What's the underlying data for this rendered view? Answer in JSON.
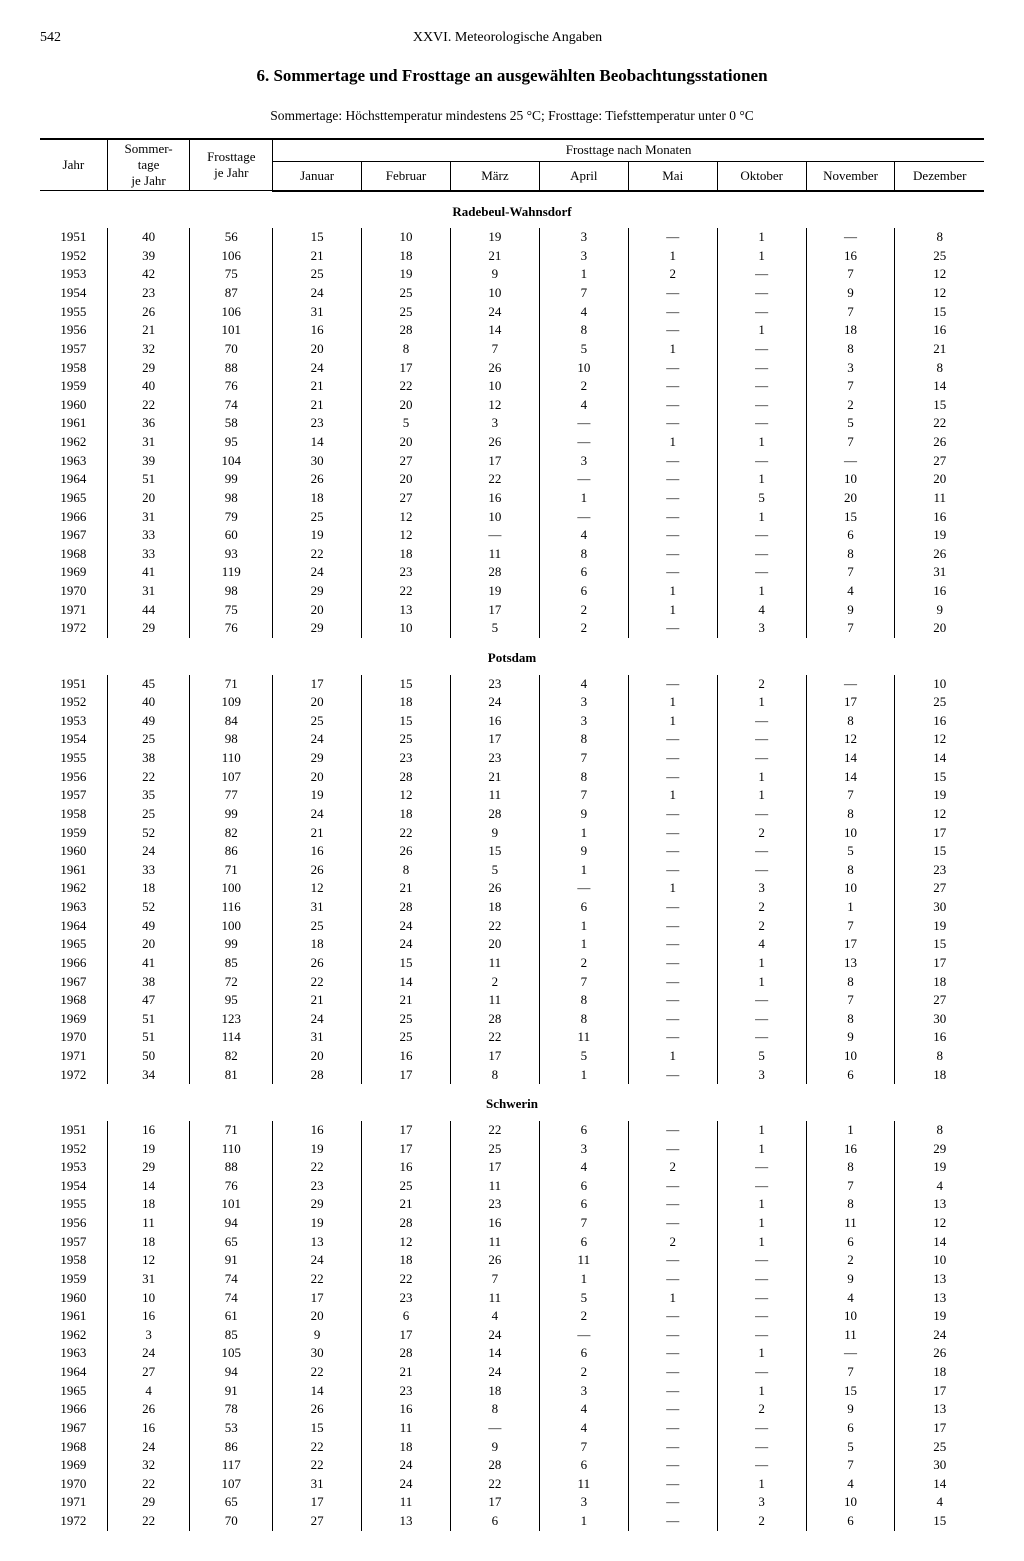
{
  "page_number": "542",
  "chapter": "XXVI. Meteorologische Angaben",
  "title": "6. Sommertage und Frosttage an ausgewählten Beobachtungsstationen",
  "subtitle": "Sommertage: Höchsttemperatur mindestens 25 °C;  Frosttage: Tiefsttemperatur unter 0 °C",
  "head": {
    "jahr": "Jahr",
    "sommer": "Sommer-\ntage\nje Jahr",
    "frost": "Frosttage\nje Jahr",
    "group": "Frosttage nach Monaten",
    "months": [
      "Januar",
      "Februar",
      "März",
      "April",
      "Mai",
      "Oktober",
      "November",
      "Dezember"
    ]
  },
  "stations": [
    {
      "name": "Radebeul-Wahnsdorf",
      "rows": [
        [
          "1951",
          "40",
          "56",
          "15",
          "10",
          "19",
          "3",
          "—",
          "1",
          "—",
          "8"
        ],
        [
          "1952",
          "39",
          "106",
          "21",
          "18",
          "21",
          "3",
          "1",
          "1",
          "16",
          "25"
        ],
        [
          "1953",
          "42",
          "75",
          "25",
          "19",
          "9",
          "1",
          "2",
          "—",
          "7",
          "12"
        ],
        [
          "1954",
          "23",
          "87",
          "24",
          "25",
          "10",
          "7",
          "—",
          "—",
          "9",
          "12"
        ],
        [
          "1955",
          "26",
          "106",
          "31",
          "25",
          "24",
          "4",
          "—",
          "—",
          "7",
          "15"
        ],
        [
          "1956",
          "21",
          "101",
          "16",
          "28",
          "14",
          "8",
          "—",
          "1",
          "18",
          "16"
        ],
        [
          "1957",
          "32",
          "70",
          "20",
          "8",
          "7",
          "5",
          "1",
          "—",
          "8",
          "21"
        ],
        [
          "1958",
          "29",
          "88",
          "24",
          "17",
          "26",
          "10",
          "—",
          "—",
          "3",
          "8"
        ],
        [
          "1959",
          "40",
          "76",
          "21",
          "22",
          "10",
          "2",
          "—",
          "—",
          "7",
          "14"
        ],
        [
          "1960",
          "22",
          "74",
          "21",
          "20",
          "12",
          "4",
          "—",
          "—",
          "2",
          "15"
        ],
        [
          "1961",
          "36",
          "58",
          "23",
          "5",
          "3",
          "—",
          "—",
          "—",
          "5",
          "22"
        ],
        [
          "1962",
          "31",
          "95",
          "14",
          "20",
          "26",
          "—",
          "1",
          "1",
          "7",
          "26"
        ],
        [
          "1963",
          "39",
          "104",
          "30",
          "27",
          "17",
          "3",
          "—",
          "—",
          "—",
          "27"
        ],
        [
          "1964",
          "51",
          "99",
          "26",
          "20",
          "22",
          "—",
          "—",
          "1",
          "10",
          "20"
        ],
        [
          "1965",
          "20",
          "98",
          "18",
          "27",
          "16",
          "1",
          "—",
          "5",
          "20",
          "11"
        ],
        [
          "1966",
          "31",
          "79",
          "25",
          "12",
          "10",
          "—",
          "—",
          "1",
          "15",
          "16"
        ],
        [
          "1967",
          "33",
          "60",
          "19",
          "12",
          "—",
          "4",
          "—",
          "—",
          "6",
          "19"
        ],
        [
          "1968",
          "33",
          "93",
          "22",
          "18",
          "11",
          "8",
          "—",
          "—",
          "8",
          "26"
        ],
        [
          "1969",
          "41",
          "119",
          "24",
          "23",
          "28",
          "6",
          "—",
          "—",
          "7",
          "31"
        ],
        [
          "1970",
          "31",
          "98",
          "29",
          "22",
          "19",
          "6",
          "1",
          "1",
          "4",
          "16"
        ],
        [
          "1971",
          "44",
          "75",
          "20",
          "13",
          "17",
          "2",
          "1",
          "4",
          "9",
          "9"
        ],
        [
          "1972",
          "29",
          "76",
          "29",
          "10",
          "5",
          "2",
          "—",
          "3",
          "7",
          "20"
        ]
      ]
    },
    {
      "name": "Potsdam",
      "rows": [
        [
          "1951",
          "45",
          "71",
          "17",
          "15",
          "23",
          "4",
          "—",
          "2",
          "—",
          "10"
        ],
        [
          "1952",
          "40",
          "109",
          "20",
          "18",
          "24",
          "3",
          "1",
          "1",
          "17",
          "25"
        ],
        [
          "1953",
          "49",
          "84",
          "25",
          "15",
          "16",
          "3",
          "1",
          "—",
          "8",
          "16"
        ],
        [
          "1954",
          "25",
          "98",
          "24",
          "25",
          "17",
          "8",
          "—",
          "—",
          "12",
          "12"
        ],
        [
          "1955",
          "38",
          "110",
          "29",
          "23",
          "23",
          "7",
          "—",
          "—",
          "14",
          "14"
        ],
        [
          "1956",
          "22",
          "107",
          "20",
          "28",
          "21",
          "8",
          "—",
          "1",
          "14",
          "15"
        ],
        [
          "1957",
          "35",
          "77",
          "19",
          "12",
          "11",
          "7",
          "1",
          "1",
          "7",
          "19"
        ],
        [
          "1958",
          "25",
          "99",
          "24",
          "18",
          "28",
          "9",
          "—",
          "—",
          "8",
          "12"
        ],
        [
          "1959",
          "52",
          "82",
          "21",
          "22",
          "9",
          "1",
          "—",
          "2",
          "10",
          "17"
        ],
        [
          "1960",
          "24",
          "86",
          "16",
          "26",
          "15",
          "9",
          "—",
          "—",
          "5",
          "15"
        ],
        [
          "1961",
          "33",
          "71",
          "26",
          "8",
          "5",
          "1",
          "—",
          "—",
          "8",
          "23"
        ],
        [
          "1962",
          "18",
          "100",
          "12",
          "21",
          "26",
          "—",
          "1",
          "3",
          "10",
          "27"
        ],
        [
          "1963",
          "52",
          "116",
          "31",
          "28",
          "18",
          "6",
          "—",
          "2",
          "1",
          "30"
        ],
        [
          "1964",
          "49",
          "100",
          "25",
          "24",
          "22",
          "1",
          "—",
          "2",
          "7",
          "19"
        ],
        [
          "1965",
          "20",
          "99",
          "18",
          "24",
          "20",
          "1",
          "—",
          "4",
          "17",
          "15"
        ],
        [
          "1966",
          "41",
          "85",
          "26",
          "15",
          "11",
          "2",
          "—",
          "1",
          "13",
          "17"
        ],
        [
          "1967",
          "38",
          "72",
          "22",
          "14",
          "2",
          "7",
          "—",
          "1",
          "8",
          "18"
        ],
        [
          "1968",
          "47",
          "95",
          "21",
          "21",
          "11",
          "8",
          "—",
          "—",
          "7",
          "27"
        ],
        [
          "1969",
          "51",
          "123",
          "24",
          "25",
          "28",
          "8",
          "—",
          "—",
          "8",
          "30"
        ],
        [
          "1970",
          "51",
          "114",
          "31",
          "25",
          "22",
          "11",
          "—",
          "—",
          "9",
          "16"
        ],
        [
          "1971",
          "50",
          "82",
          "20",
          "16",
          "17",
          "5",
          "1",
          "5",
          "10",
          "8"
        ],
        [
          "1972",
          "34",
          "81",
          "28",
          "17",
          "8",
          "1",
          "—",
          "3",
          "6",
          "18"
        ]
      ]
    },
    {
      "name": "Schwerin",
      "rows": [
        [
          "1951",
          "16",
          "71",
          "16",
          "17",
          "22",
          "6",
          "—",
          "1",
          "1",
          "8"
        ],
        [
          "1952",
          "19",
          "110",
          "19",
          "17",
          "25",
          "3",
          "—",
          "1",
          "16",
          "29"
        ],
        [
          "1953",
          "29",
          "88",
          "22",
          "16",
          "17",
          "4",
          "2",
          "—",
          "8",
          "19"
        ],
        [
          "1954",
          "14",
          "76",
          "23",
          "25",
          "11",
          "6",
          "—",
          "—",
          "7",
          "4"
        ],
        [
          "1955",
          "18",
          "101",
          "29",
          "21",
          "23",
          "6",
          "—",
          "1",
          "8",
          "13"
        ],
        [
          "1956",
          "11",
          "94",
          "19",
          "28",
          "16",
          "7",
          "—",
          "1",
          "11",
          "12"
        ],
        [
          "1957",
          "18",
          "65",
          "13",
          "12",
          "11",
          "6",
          "2",
          "1",
          "6",
          "14"
        ],
        [
          "1958",
          "12",
          "91",
          "24",
          "18",
          "26",
          "11",
          "—",
          "—",
          "2",
          "10"
        ],
        [
          "1959",
          "31",
          "74",
          "22",
          "22",
          "7",
          "1",
          "—",
          "—",
          "9",
          "13"
        ],
        [
          "1960",
          "10",
          "74",
          "17",
          "23",
          "11",
          "5",
          "1",
          "—",
          "4",
          "13"
        ],
        [
          "1961",
          "16",
          "61",
          "20",
          "6",
          "4",
          "2",
          "—",
          "—",
          "10",
          "19"
        ],
        [
          "1962",
          "3",
          "85",
          "9",
          "17",
          "24",
          "—",
          "—",
          "—",
          "11",
          "24"
        ],
        [
          "1963",
          "24",
          "105",
          "30",
          "28",
          "14",
          "6",
          "—",
          "1",
          "—",
          "26"
        ],
        [
          "1964",
          "27",
          "94",
          "22",
          "21",
          "24",
          "2",
          "—",
          "—",
          "7",
          "18"
        ],
        [
          "1965",
          "4",
          "91",
          "14",
          "23",
          "18",
          "3",
          "—",
          "1",
          "15",
          "17"
        ],
        [
          "1966",
          "26",
          "78",
          "26",
          "16",
          "8",
          "4",
          "—",
          "2",
          "9",
          "13"
        ],
        [
          "1967",
          "16",
          "53",
          "15",
          "11",
          "—",
          "4",
          "—",
          "—",
          "6",
          "17"
        ],
        [
          "1968",
          "24",
          "86",
          "22",
          "18",
          "9",
          "7",
          "—",
          "—",
          "5",
          "25"
        ],
        [
          "1969",
          "32",
          "117",
          "22",
          "24",
          "28",
          "6",
          "—",
          "—",
          "7",
          "30"
        ],
        [
          "1970",
          "22",
          "107",
          "31",
          "24",
          "22",
          "11",
          "—",
          "1",
          "4",
          "14"
        ],
        [
          "1971",
          "29",
          "65",
          "17",
          "11",
          "17",
          "3",
          "—",
          "3",
          "10",
          "4"
        ],
        [
          "1972",
          "22",
          "70",
          "27",
          "13",
          "6",
          "1",
          "—",
          "2",
          "6",
          "15"
        ]
      ]
    }
  ]
}
